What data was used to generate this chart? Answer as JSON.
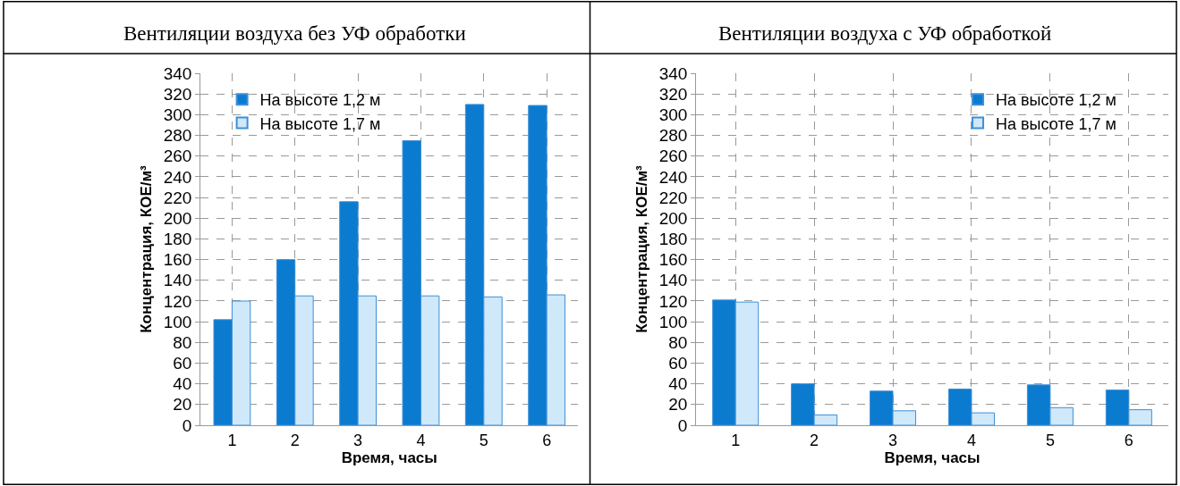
{
  "chart_data": [
    {
      "type": "bar",
      "title": "Вентиляции воздуха без УФ обработки",
      "xlabel": "Время, часы",
      "ylabel": "Концентрация, КОЕ/м³",
      "categories": [
        "1",
        "2",
        "3",
        "4",
        "5",
        "6"
      ],
      "series": [
        {
          "name": "На высоте 1,2 м",
          "color": "#0b7bd0",
          "values": [
            102,
            160,
            216,
            275,
            310,
            309
          ]
        },
        {
          "name": "На высоте 1,7 м",
          "color": "#cfe8fa",
          "values": [
            120,
            125,
            125,
            125,
            124,
            126
          ]
        }
      ],
      "ylim": [
        0,
        340
      ],
      "yticks": [
        0,
        20,
        40,
        60,
        80,
        100,
        120,
        140,
        160,
        180,
        200,
        220,
        240,
        260,
        280,
        300,
        320,
        340
      ],
      "grid": true,
      "legend": "top left"
    },
    {
      "type": "bar",
      "title": "Вентиляции воздуха с УФ обработкой",
      "xlabel": "Время, часы",
      "ylabel": "Концентрация, КОЕ/м³",
      "categories": [
        "1",
        "2",
        "3",
        "4",
        "5",
        "6"
      ],
      "series": [
        {
          "name": "На высоте 1,2 м",
          "color": "#0b7bd0",
          "values": [
            121,
            40,
            33,
            35,
            39,
            34
          ]
        },
        {
          "name": "На высоте 1,7 м",
          "color": "#cfe8fa",
          "values": [
            119,
            10,
            14,
            12,
            17,
            15
          ]
        }
      ],
      "ylim": [
        0,
        340
      ],
      "yticks": [
        0,
        20,
        40,
        60,
        80,
        100,
        120,
        140,
        160,
        180,
        200,
        220,
        240,
        260,
        280,
        300,
        320,
        340
      ],
      "grid": true,
      "legend": "top right"
    }
  ]
}
